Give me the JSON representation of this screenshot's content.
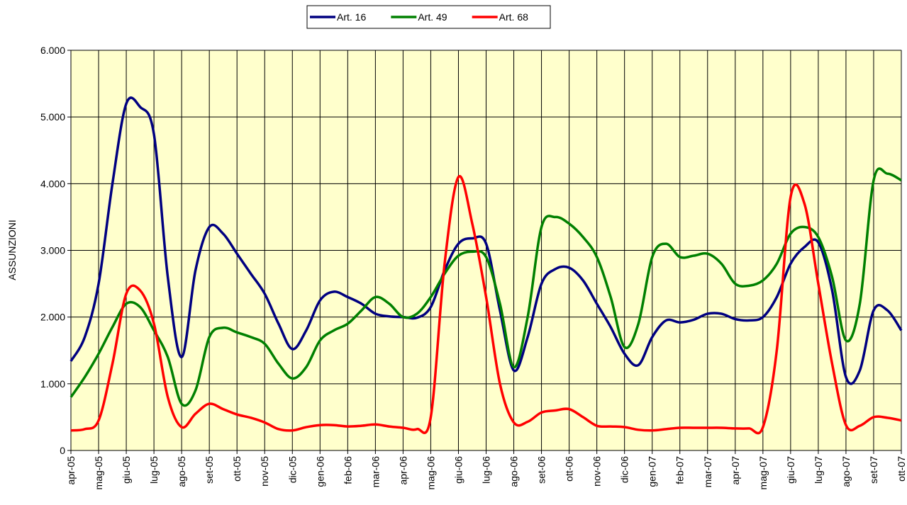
{
  "chart_data": {
    "type": "line",
    "y_label": "ASSUNZIONI",
    "categories": [
      "apr-05",
      null,
      "mag-05",
      null,
      "giu-05",
      null,
      "lug-05",
      null,
      "ago-05",
      null,
      "set-05",
      null,
      "ott-05",
      null,
      "nov-05",
      null,
      "dic-05",
      null,
      "gen-06",
      null,
      "feb-06",
      null,
      "mar-06",
      null,
      "apr-06",
      null,
      "mag-06",
      null,
      "giu-06",
      null,
      "lug-06",
      null,
      "ago-06",
      null,
      "set-06",
      null,
      "ott-06",
      null,
      "nov-06",
      null,
      "dic-06",
      null,
      "gen-07",
      null,
      "feb-07",
      null,
      "mar-07",
      null,
      "apr-07",
      null,
      "mag-07",
      null,
      "giu-07",
      null,
      "lug-07",
      null,
      "ago-07",
      null,
      "set-07",
      null,
      "ott-07"
    ],
    "series": [
      {
        "name": "Art. 16",
        "color": "#000080",
        "values": [
          1340,
          1700,
          2500,
          4000,
          5200,
          5150,
          4740,
          2600,
          1400,
          2700,
          3350,
          3250,
          2950,
          2650,
          2350,
          1900,
          1520,
          1800,
          2250,
          2380,
          2300,
          2200,
          2050,
          2010,
          2000,
          1990,
          2150,
          2700,
          3100,
          3180,
          3100,
          2100,
          1200,
          1700,
          2500,
          2720,
          2740,
          2550,
          2200,
          1850,
          1450,
          1280,
          1700,
          1950,
          1920,
          1960,
          2050,
          2050,
          1970,
          1950,
          2000,
          2300,
          2800,
          3050,
          3120,
          2400,
          1100,
          1200,
          2100,
          2100,
          1800
        ]
      },
      {
        "name": "Art. 49",
        "color": "#008000",
        "values": [
          800,
          1100,
          1450,
          1850,
          2200,
          2150,
          1800,
          1400,
          700,
          900,
          1700,
          1840,
          1770,
          1700,
          1600,
          1300,
          1080,
          1250,
          1650,
          1800,
          1900,
          2100,
          2300,
          2200,
          2000,
          2050,
          2300,
          2650,
          2920,
          2980,
          2900,
          2200,
          1250,
          2000,
          3350,
          3500,
          3400,
          3200,
          2900,
          2300,
          1550,
          1900,
          2900,
          3100,
          2900,
          2920,
          2950,
          2800,
          2500,
          2470,
          2550,
          2800,
          3250,
          3350,
          3200,
          2600,
          1650,
          2200,
          4050,
          4150,
          4050
        ]
      },
      {
        "name": "Art. 68",
        "color": "#ff0000",
        "values": [
          300,
          320,
          450,
          1300,
          2350,
          2400,
          1900,
          800,
          350,
          550,
          700,
          620,
          540,
          490,
          420,
          320,
          300,
          350,
          380,
          380,
          360,
          370,
          390,
          360,
          340,
          320,
          500,
          2800,
          4100,
          3400,
          2300,
          1000,
          420,
          430,
          570,
          600,
          620,
          500,
          370,
          360,
          350,
          310,
          300,
          320,
          340,
          340,
          340,
          340,
          330,
          330,
          350,
          1500,
          3800,
          3700,
          2500,
          1300,
          380,
          370,
          500,
          490,
          450
        ]
      }
    ],
    "ylim": [
      0,
      6000
    ],
    "yticks": [
      0,
      {
        "value": 1000,
        "label": "1.000"
      },
      {
        "value": 2000,
        "label": "2.000"
      },
      {
        "value": 3000,
        "label": "3.000"
      },
      {
        "value": 4000,
        "label": "4.000"
      },
      {
        "value": 5000,
        "label": "5.000"
      },
      {
        "value": 6000,
        "label": "6.000"
      }
    ],
    "grid": true,
    "legend": "top",
    "plot_background": "#ffffcc"
  }
}
